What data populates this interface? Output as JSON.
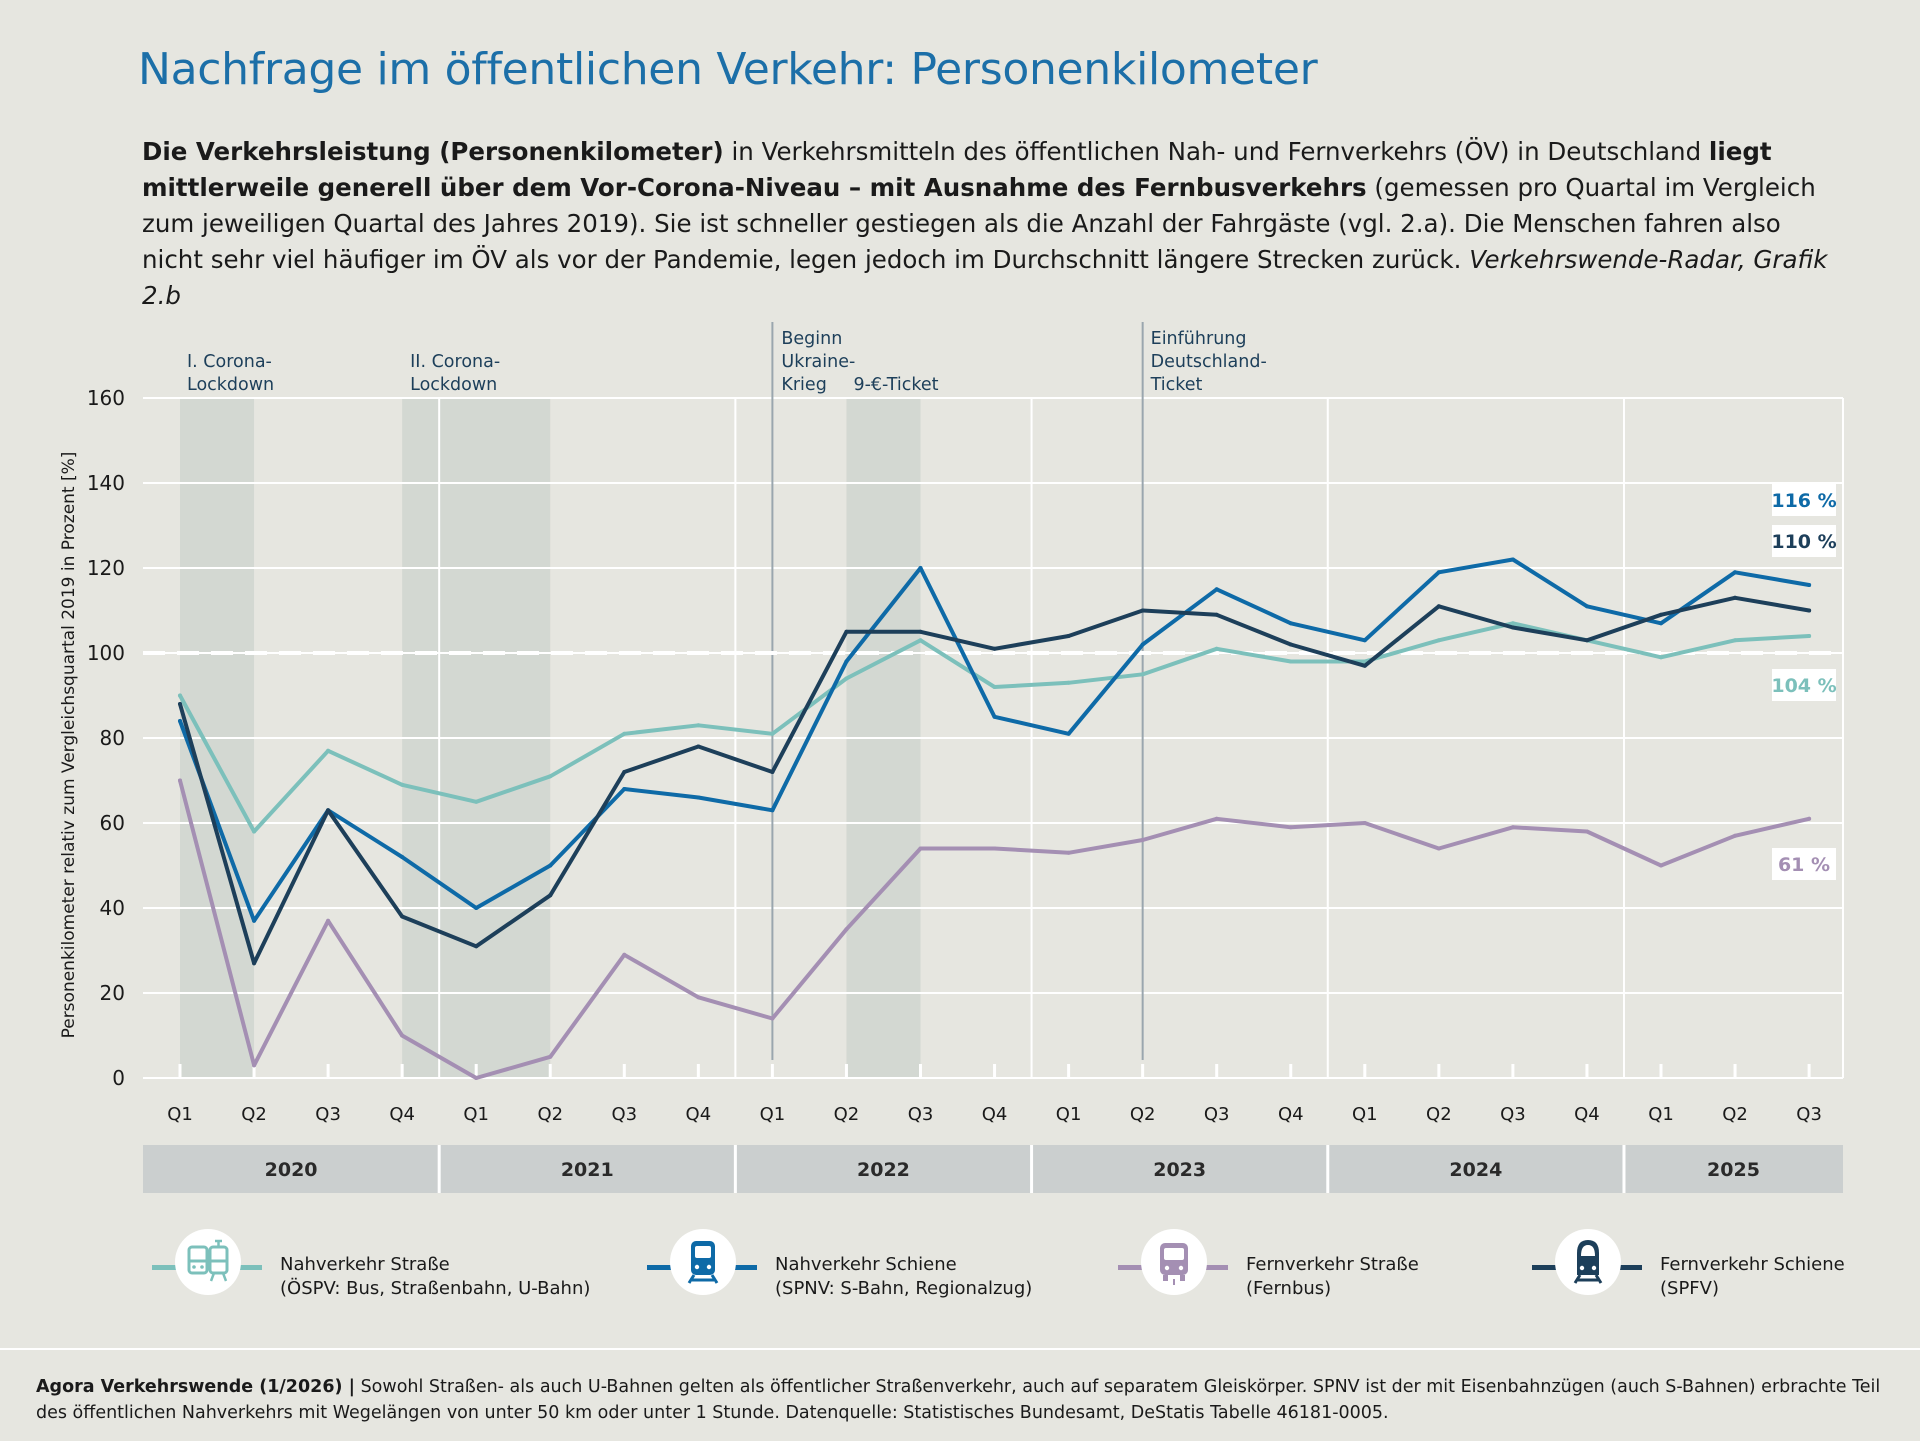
{
  "title": "Nachfrage im öffentlichen Verkehr: Personenkilometer",
  "intro": {
    "bold1": "Die Verkehrsleistung (Personenkilometer)",
    "text1": " in Verkehrsmitteln des öffentlichen Nah- und Fernverkehrs (ÖV) in Deutschland ",
    "bold2": "liegt mittlerweile generell über dem Vor-Corona-Niveau – mit Ausnahme des Fernbusverkehrs",
    "text2": " (gemessen pro Quartal im Vergleich zum jeweiligen Quartal des Jahres 2019). Sie ist schneller gestiegen als die Anzahl der Fahrgäste (vgl. 2.a). Die Menschen fahren also nicht sehr viel häufiger im ÖV als vor der Pandemie, legen jedoch im Durchschnitt längere Strecken zurück. ",
    "italic": "Verkehrswende-Radar, Grafik 2.b"
  },
  "chart_data": {
    "type": "line",
    "ylabel": "Personenkilometer relativ zum Vergleichsquartal 2019 in Prozent [%]",
    "ylim": [
      0,
      160
    ],
    "yticks": [
      0,
      20,
      40,
      60,
      80,
      100,
      120,
      140,
      160
    ],
    "reference_line": 100,
    "grid": true,
    "categories": [
      "Q1",
      "Q2",
      "Q3",
      "Q4",
      "Q1",
      "Q2",
      "Q3",
      "Q4",
      "Q1",
      "Q2",
      "Q3",
      "Q4",
      "Q1",
      "Q2",
      "Q3",
      "Q4",
      "Q1",
      "Q2",
      "Q3",
      "Q4",
      "Q1",
      "Q2",
      "Q3"
    ],
    "years": [
      {
        "label": "2020",
        "quarters": 4
      },
      {
        "label": "2021",
        "quarters": 4
      },
      {
        "label": "2022",
        "quarters": 4
      },
      {
        "label": "2023",
        "quarters": 4
      },
      {
        "label": "2024",
        "quarters": 4
      },
      {
        "label": "2025",
        "quarters": 3
      }
    ],
    "shaded_periods": [
      {
        "label": "I. Corona-\nLockdown",
        "from": 0,
        "to": 1
      },
      {
        "label": "II. Corona-\nLockdown",
        "from": 3,
        "to": 5
      },
      {
        "label": "9-€-Ticket",
        "from": 9,
        "to": 10
      }
    ],
    "event_lines": [
      {
        "label": "Beginn\nUkraine-\nKrieg",
        "at": 8
      },
      {
        "label": "Einführung\nDeutschland-\nTicket",
        "at": 13
      }
    ],
    "series": [
      {
        "name": "Nahverkehr Straße",
        "sub": "(ÖSPV: Bus, Straßenbahn, U-Bahn)",
        "color": "#7cc0bb",
        "end_label": "104 %",
        "values": [
          90,
          58,
          77,
          69,
          65,
          71,
          81,
          83,
          81,
          94,
          103,
          92,
          93,
          95,
          101,
          98,
          98,
          103,
          107,
          103,
          99,
          103,
          104
        ]
      },
      {
        "name": "Nahverkehr Schiene",
        "sub": "(SPNV: S-Bahn, Regionalzug)",
        "color": "#0e6aa7",
        "end_label": "116 %",
        "values": [
          84,
          37,
          63,
          52,
          40,
          50,
          68,
          66,
          63,
          98,
          120,
          85,
          81,
          102,
          115,
          107,
          103,
          119,
          122,
          111,
          107,
          119,
          116
        ]
      },
      {
        "name": "Fernverkehr Straße",
        "sub": "(Fernbus)",
        "color": "#a48fb3",
        "end_label": "61 %",
        "values": [
          70,
          3,
          37,
          10,
          0,
          5,
          29,
          19,
          14,
          35,
          54,
          54,
          53,
          56,
          61,
          59,
          60,
          54,
          59,
          58,
          50,
          57,
          61
        ]
      },
      {
        "name": "Fernverkehr Schiene",
        "sub": "(SPFV)",
        "color": "#1d3f5a",
        "end_label": "110 %",
        "values": [
          88,
          27,
          63,
          38,
          31,
          43,
          72,
          78,
          72,
          105,
          105,
          101,
          104,
          110,
          109,
          102,
          97,
          111,
          106,
          103,
          109,
          113,
          110
        ]
      }
    ]
  },
  "legend": {
    "items": [
      {
        "name": "Nahverkehr Straße",
        "sub": "(ÖSPV: Bus, Straßenbahn, U-Bahn)",
        "icon": "bus-tram-icon",
        "color": "#7cc0bb"
      },
      {
        "name": "Nahverkehr Schiene",
        "sub": "(SPNV: S-Bahn, Regionalzug)",
        "icon": "regional-train-icon",
        "color": "#0e6aa7"
      },
      {
        "name": "Fernverkehr Straße",
        "sub": "(Fernbus)",
        "icon": "coach-bus-icon",
        "color": "#a48fb3"
      },
      {
        "name": "Fernverkehr Schiene",
        "sub": "(SPFV)",
        "icon": "high-speed-train-icon",
        "color": "#1d3f5a"
      }
    ]
  },
  "footer": {
    "source": "Agora Verkehrswende (1/2026) |",
    "note": " Sowohl Straßen- als auch U-Bahnen gelten als öffentlicher Straßenverkehr, auch auf separatem Gleiskörper. SPNV ist der mit Eisenbahnzügen (auch S-Bahnen) erbrachte Teil des öffentlichen Nahverkehrs mit Wegelängen von unter 50 km oder unter 1 Stunde. Datenquelle: Statistisches Bundesamt, DeStatis Tabelle 46181-0005."
  }
}
